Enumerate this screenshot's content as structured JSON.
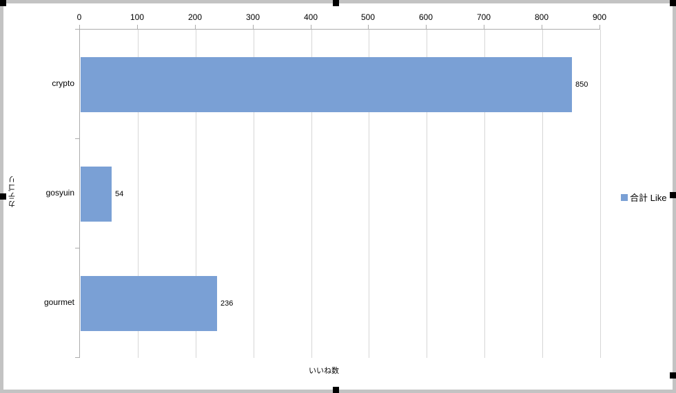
{
  "chart_data": {
    "type": "bar",
    "orientation": "horizontal",
    "title": "",
    "categories": [
      "crypto",
      "gosyuin",
      "gourmet"
    ],
    "series": [
      {
        "name": "合計 Like",
        "values": [
          850,
          54,
          236
        ],
        "color": "#7aa0d5"
      }
    ],
    "data_labels": [
      "850",
      "54",
      "236"
    ],
    "xlabel": "いいね数",
    "ylabel": "カテゴリ",
    "xlim": [
      0,
      900
    ],
    "x_ticks": [
      "0",
      "100",
      "200",
      "300",
      "400",
      "500",
      "600",
      "700",
      "800",
      "900"
    ],
    "grid": true,
    "legend": {
      "position": "right",
      "label": "合計 Like",
      "swatch_color": "#7aa0d5"
    }
  },
  "colors": {
    "bar": "#7aa0d5",
    "gridline": "#d6d6d6",
    "axis_line": "#ababab",
    "frame_border": "#c3c3c3",
    "selection_handle": "#000000",
    "text": "#000000",
    "background": "#ffffff"
  }
}
